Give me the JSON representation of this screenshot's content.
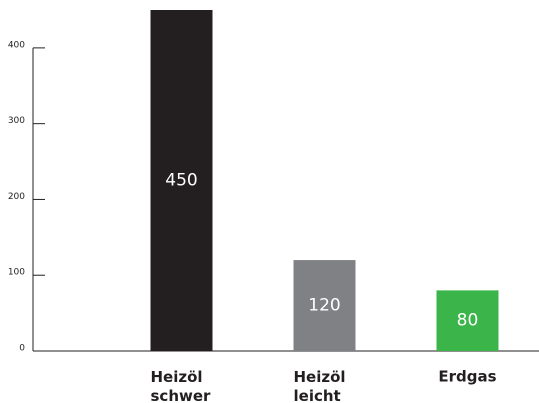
{
  "chart_data": {
    "type": "bar",
    "categories": [
      "Heizöl schwer",
      "Heizöl leicht",
      "Erdgas"
    ],
    "values": [
      450,
      120,
      80
    ],
    "colors": [
      "#231f20",
      "#808184",
      "#3bb54a"
    ],
    "ylim": [
      0,
      450
    ],
    "yticks": [
      0,
      100,
      200,
      300,
      400
    ]
  }
}
